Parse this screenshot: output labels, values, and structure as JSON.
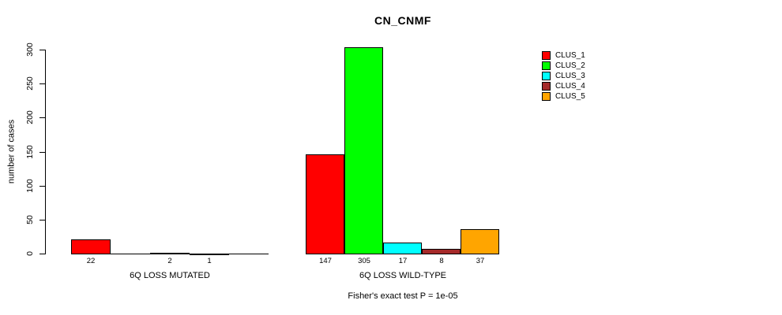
{
  "title": "CN_CNMF",
  "annotation": "Fisher's exact test P = 1e-05",
  "chart_data": {
    "type": "bar",
    "title": "CN_CNMF",
    "xlabel": "",
    "ylabel": "number of cases",
    "ylim": [
      0,
      300
    ],
    "yticks": [
      0,
      50,
      100,
      150,
      200,
      250,
      300
    ],
    "grid": false,
    "legend_position": "right",
    "bar_value_labels": "shown under each nonzero bar",
    "categories": [
      "6Q LOSS MUTATED",
      "6Q LOSS WILD-TYPE"
    ],
    "series": [
      {
        "name": "CLUS_1",
        "color": "#FF0000",
        "values": [
          22,
          147
        ]
      },
      {
        "name": "CLUS_2",
        "color": "#00FF00",
        "values": [
          0,
          305
        ]
      },
      {
        "name": "CLUS_3",
        "color": "#00FFFF",
        "values": [
          2,
          17
        ]
      },
      {
        "name": "CLUS_4",
        "color": "#A52A2A",
        "values": [
          1,
          8
        ]
      },
      {
        "name": "CLUS_5",
        "color": "#FFA500",
        "values": [
          0,
          37
        ]
      }
    ],
    "annotation": "Fisher's exact test P = 1e-05"
  },
  "legend": {
    "items": [
      {
        "label": "CLUS_1",
        "color": "#FF0000"
      },
      {
        "label": "CLUS_2",
        "color": "#00FF00"
      },
      {
        "label": "CLUS_3",
        "color": "#00FFFF"
      },
      {
        "label": "CLUS_4",
        "color": "#A52A2A"
      },
      {
        "label": "CLUS_5",
        "color": "#FFA500"
      }
    ]
  }
}
